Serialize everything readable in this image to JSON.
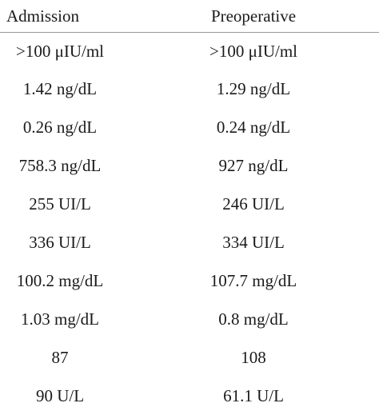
{
  "table": {
    "headers": [
      "Admission",
      "Preoperative"
    ],
    "rows": [
      [
        ">100 μIU/ml",
        ">100 μIU/ml"
      ],
      [
        "1.42 ng/dL",
        "1.29 ng/dL"
      ],
      [
        "0.26 ng/dL",
        "0.24 ng/dL"
      ],
      [
        "758.3 ng/dL",
        "927 ng/dL"
      ],
      [
        "255 UI/L",
        "246 UI/L"
      ],
      [
        "336 UI/L",
        "334 UI/L"
      ],
      [
        "100.2 mg/dL",
        "107.7 mg/dL"
      ],
      [
        "1.03 mg/dL",
        "0.8 mg/dL"
      ],
      [
        "87",
        "108"
      ],
      [
        "90 U/L",
        "61.1 U/L"
      ]
    ]
  }
}
